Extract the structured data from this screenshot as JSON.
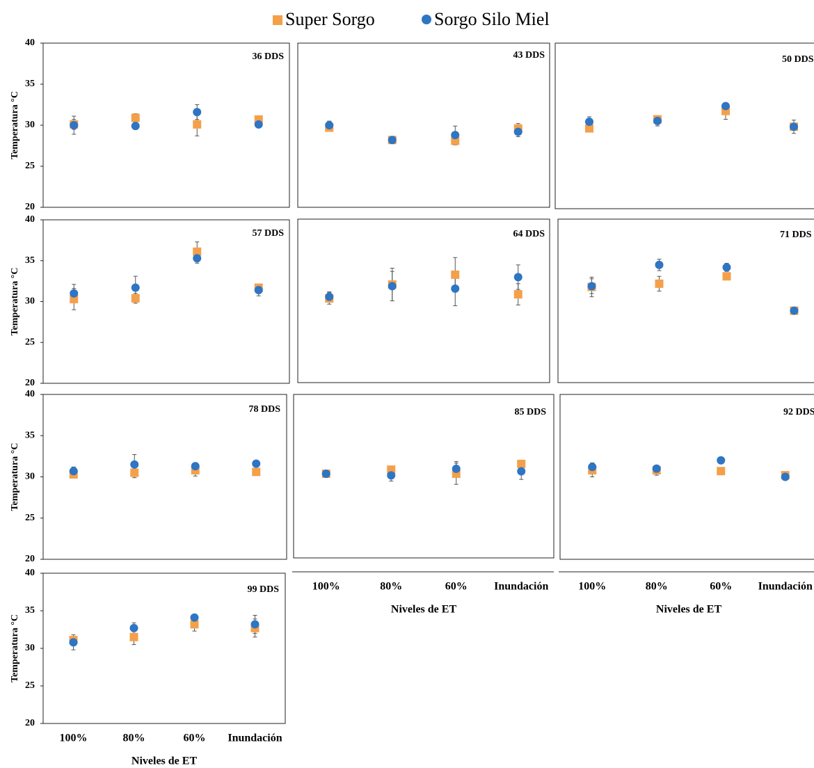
{
  "chart_data": [
    {
      "type": "scatter",
      "title": "36 DDS",
      "ylabel": "Temperatura °C",
      "categories": [
        "100%",
        "80%",
        "60%",
        "Inundación"
      ],
      "ylim": [
        20,
        40
      ],
      "yticks": [
        20,
        25,
        30,
        35,
        40
      ],
      "series": [
        {
          "name": "Super Sorgo",
          "color": "#f4a04a",
          "marker": "square",
          "values": [
            30.1,
            30.9,
            30.1,
            30.7
          ],
          "errors": [
            0.6,
            0.5,
            1.4,
            0.3
          ]
        },
        {
          "name": "Sorgo Silo Miel",
          "color": "#2e75c4",
          "marker": "circle",
          "values": [
            30.0,
            29.9,
            31.6,
            30.1
          ],
          "errors": [
            1.1,
            0.3,
            0.9,
            0.3
          ]
        }
      ]
    },
    {
      "type": "scatter",
      "title": "43 DDS",
      "categories": [
        "100%",
        "80%",
        "60%",
        "Inundación"
      ],
      "ylim": [
        20,
        40
      ],
      "series": [
        {
          "name": "Super Sorgo",
          "color": "#f4a04a",
          "marker": "square",
          "values": [
            29.7,
            28.2,
            28.1,
            29.6
          ],
          "errors": [
            0.3,
            0.3,
            0.5,
            0.6
          ]
        },
        {
          "name": "Sorgo Silo Miel",
          "color": "#2e75c4",
          "marker": "circle",
          "values": [
            30.0,
            28.2,
            28.8,
            29.2
          ],
          "errors": [
            0.5,
            0.4,
            1.1,
            0.6
          ]
        }
      ]
    },
    {
      "type": "scatter",
      "title": "50 DDS",
      "categories": [
        "100%",
        "80%",
        "60%",
        "Inundación"
      ],
      "ylim": [
        20,
        40
      ],
      "series": [
        {
          "name": "Super Sorgo",
          "color": "#f4a04a",
          "marker": "square",
          "values": [
            29.7,
            30.8,
            31.8,
            29.9
          ],
          "errors": [
            0.3,
            0.4,
            1.0,
            0.4
          ]
        },
        {
          "name": "Sorgo Silo Miel",
          "color": "#2e75c4",
          "marker": "circle",
          "values": [
            30.5,
            30.6,
            32.4,
            29.9
          ],
          "errors": [
            0.6,
            0.6,
            0.3,
            0.8
          ]
        }
      ]
    },
    {
      "type": "scatter",
      "title": "57 DDS",
      "ylabel": "Temperatura °C",
      "categories": [
        "100%",
        "80%",
        "60%",
        "Inundación"
      ],
      "ylim": [
        20,
        40
      ],
      "yticks": [
        20,
        25,
        30,
        35,
        40
      ],
      "series": [
        {
          "name": "Super Sorgo",
          "color": "#f4a04a",
          "marker": "square",
          "values": [
            30.3,
            30.4,
            36.1,
            31.7
          ],
          "errors": [
            1.3,
            0.6,
            1.2,
            0.3
          ]
        },
        {
          "name": "Sorgo Silo Miel",
          "color": "#2e75c4",
          "marker": "circle",
          "values": [
            31.0,
            31.7,
            35.3,
            31.4
          ],
          "errors": [
            1.1,
            1.4,
            0.6,
            0.7
          ]
        }
      ]
    },
    {
      "type": "scatter",
      "title": "64 DDS",
      "categories": [
        "100%",
        "80%",
        "60%",
        "Inundación"
      ],
      "ylim": [
        20,
        40
      ],
      "series": [
        {
          "name": "Super Sorgo",
          "color": "#f4a04a",
          "marker": "square",
          "values": [
            30.3,
            32.0,
            33.2,
            30.8
          ],
          "errors": [
            0.7,
            2.0,
            2.1,
            1.3
          ]
        },
        {
          "name": "Sorgo Silo Miel",
          "color": "#2e75c4",
          "marker": "circle",
          "values": [
            30.5,
            31.8,
            31.5,
            32.9
          ],
          "errors": [
            0.6,
            1.8,
            2.1,
            1.5
          ]
        }
      ]
    },
    {
      "type": "scatter",
      "title": "71 DDS",
      "categories": [
        "100%",
        "80%",
        "60%",
        "Inundación"
      ],
      "ylim": [
        20,
        40
      ],
      "series": [
        {
          "name": "Super Sorgo",
          "color": "#f4a04a",
          "marker": "square",
          "values": [
            31.7,
            32.1,
            33.0,
            28.8
          ],
          "errors": [
            1.2,
            0.9,
            0.3,
            0.2
          ]
        },
        {
          "name": "Sorgo Silo Miel",
          "color": "#2e75c4",
          "marker": "circle",
          "values": [
            31.8,
            34.4,
            34.1,
            28.8
          ],
          "errors": [
            0.9,
            0.7,
            0.5,
            0.4
          ]
        }
      ]
    },
    {
      "type": "scatter",
      "title": "78 DDS",
      "ylabel": "Temperatura °C",
      "categories": [
        "100%",
        "80%",
        "60%",
        "Inundación"
      ],
      "ylim": [
        20,
        40
      ],
      "yticks": [
        20,
        25,
        30,
        35,
        40
      ],
      "series": [
        {
          "name": "Super Sorgo",
          "color": "#f4a04a",
          "marker": "square",
          "values": [
            30.3,
            30.5,
            30.8,
            30.6
          ],
          "errors": [
            0.3,
            0.6,
            0.7,
            0.2
          ]
        },
        {
          "name": "Sorgo Silo Miel",
          "color": "#2e75c4",
          "marker": "circle",
          "values": [
            30.7,
            31.5,
            31.3,
            31.6
          ],
          "errors": [
            0.5,
            1.2,
            0.4,
            0.2
          ]
        }
      ]
    },
    {
      "type": "scatter",
      "title": "85 DDS",
      "xlabel": "Niveles de ET",
      "categories": [
        "100%",
        "80%",
        "60%",
        "Inundación"
      ],
      "ylim": [
        20,
        40
      ],
      "series": [
        {
          "name": "Super Sorgo",
          "color": "#f4a04a",
          "marker": "square",
          "values": [
            30.3,
            30.8,
            30.3,
            31.5
          ],
          "errors": [
            0.3,
            0.3,
            1.3,
            0.3
          ]
        },
        {
          "name": "Sorgo Silo Miel",
          "color": "#2e75c4",
          "marker": "circle",
          "values": [
            30.3,
            30.1,
            30.9,
            30.6
          ],
          "errors": [
            0.3,
            0.7,
            0.9,
            1.0
          ]
        }
      ]
    },
    {
      "type": "scatter",
      "title": "92 DDS",
      "xlabel": "Niveles de ET",
      "categories": [
        "100%",
        "80%",
        "60%",
        "Inundación"
      ],
      "ylim": [
        20,
        40
      ],
      "series": [
        {
          "name": "Super Sorgo",
          "color": "#f4a04a",
          "marker": "square",
          "values": [
            30.8,
            30.8,
            30.7,
            30.2
          ],
          "errors": [
            0.8,
            0.6,
            0.2,
            0.3
          ]
        },
        {
          "name": "Sorgo Silo Miel",
          "color": "#2e75c4",
          "marker": "circle",
          "values": [
            31.2,
            31.0,
            32.0,
            30.0
          ],
          "errors": [
            0.5,
            0.4,
            0.3,
            0.3
          ]
        }
      ]
    },
    {
      "type": "scatter",
      "title": "99 DDS",
      "ylabel": "Temperatura °C",
      "xlabel": "Niveles de ET",
      "categories": [
        "100%",
        "80%",
        "60%",
        "Inundación"
      ],
      "ylim": [
        20,
        40
      ],
      "yticks": [
        20,
        25,
        30,
        35,
        40
      ],
      "series": [
        {
          "name": "Super Sorgo",
          "color": "#f4a04a",
          "marker": "square",
          "values": [
            31.1,
            31.5,
            33.2,
            32.7
          ],
          "errors": [
            0.2,
            1.0,
            0.9,
            1.2
          ]
        },
        {
          "name": "Sorgo Silo Miel",
          "color": "#2e75c4",
          "marker": "circle",
          "values": [
            30.8,
            32.7,
            34.1,
            33.2
          ],
          "errors": [
            1.0,
            0.7,
            0.4,
            1.2
          ]
        }
      ]
    }
  ]
}
